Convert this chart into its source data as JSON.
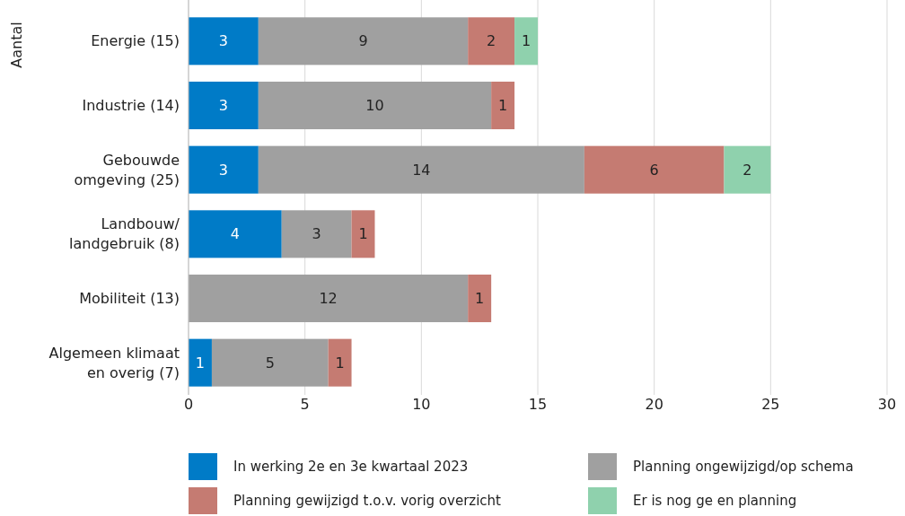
{
  "chart_data": {
    "type": "bar",
    "orientation": "horizontal",
    "stacked": true,
    "ylabel": "Aantal",
    "categories": [
      "Energie (15)",
      "Industrie (14)",
      "Gebouwde\nomgeving (25)",
      "Landbouw/\nlandgebruik (8)",
      "Mobiliteit (13)",
      "Algemeen klimaat\nen overig (7)"
    ],
    "series": [
      {
        "name": "In werking 2e en 3e kwartaal 2023",
        "color": "#007bc7",
        "values": [
          3,
          3,
          3,
          4,
          null,
          1
        ]
      },
      {
        "name": "Planning ongewijzigd/op schema",
        "color": "#a0a0a0",
        "values": [
          9,
          10,
          14,
          3,
          12,
          5
        ]
      },
      {
        "name": "Planning gewijzigd t.o.v. vorig overzicht",
        "color": "#c57b72",
        "values": [
          2,
          1,
          6,
          1,
          1,
          1
        ]
      },
      {
        "name": "Er is nog ge en planning",
        "color": "#8fd1ad",
        "values": [
          1,
          null,
          2,
          null,
          null,
          null
        ]
      }
    ],
    "xlim": [
      0,
      30
    ],
    "xticks": [
      0,
      5,
      10,
      15,
      20,
      25,
      30
    ],
    "grid": "x",
    "data_labels": true,
    "legend": "bottom"
  }
}
